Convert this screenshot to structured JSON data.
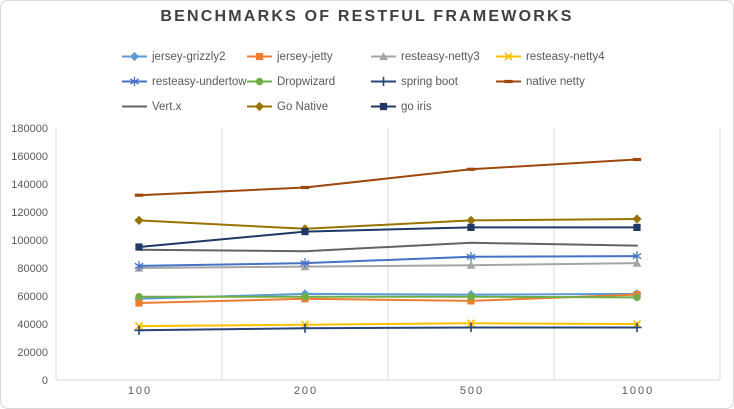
{
  "chart_data": {
    "type": "line",
    "title": "BENCHMARKS OF RESTFUL FRAMEWORKS",
    "xlabel": "",
    "ylabel": "",
    "categories": [
      "100",
      "200",
      "500",
      "1000"
    ],
    "ylim": [
      0,
      180000
    ],
    "ytick_step": 20000,
    "y_ticks": [
      "0",
      "20000",
      "40000",
      "60000",
      "80000",
      "100000",
      "120000",
      "140000",
      "160000",
      "180000"
    ],
    "grid": "vertical-only",
    "legend_position": "top",
    "series": [
      {
        "name": "jersey-grizzly2",
        "color": "#5B9BD5",
        "marker": "diamond",
        "values": [
          58000,
          61500,
          61000,
          61500
        ]
      },
      {
        "name": "jersey-jetty",
        "color": "#ED7D31",
        "marker": "square",
        "values": [
          55000,
          58000,
          56500,
          61000
        ]
      },
      {
        "name": "resteasy-netty3",
        "color": "#A5A5A5",
        "marker": "triangle",
        "values": [
          80000,
          81000,
          82000,
          83500
        ]
      },
      {
        "name": "resteasy-netty4",
        "color": "#FFC000",
        "marker": "x",
        "values": [
          38500,
          39500,
          40500,
          40000
        ]
      },
      {
        "name": "resteasy-undertow",
        "color": "#4472C4",
        "marker": "asterisk",
        "values": [
          81500,
          83500,
          88000,
          88500
        ]
      },
      {
        "name": "Dropwizard",
        "color": "#70AD47",
        "marker": "circle",
        "values": [
          59500,
          59500,
          59500,
          59000
        ]
      },
      {
        "name": "spring boot",
        "color": "#264478",
        "marker": "plus",
        "values": [
          35500,
          37000,
          37500,
          37500
        ]
      },
      {
        "name": "native netty",
        "color": "#9E480E",
        "marker": "dash",
        "values": [
          132000,
          137500,
          150500,
          157500
        ]
      },
      {
        "name": "Vert.x",
        "color": "#636363",
        "marker": "none",
        "values": [
          93000,
          92000,
          98000,
          96000
        ]
      },
      {
        "name": "Go Native",
        "color": "#997300",
        "marker": "diamond",
        "values": [
          114000,
          108000,
          114000,
          115000
        ]
      },
      {
        "name": "go iris",
        "color": "#1F3864",
        "marker": "square",
        "values": [
          95000,
          106000,
          109000,
          109000
        ]
      }
    ],
    "axis_color": "#D9D9D9",
    "gridline_color": "#D9D9D9",
    "title_color": "#404040",
    "label_color": "#595959"
  }
}
